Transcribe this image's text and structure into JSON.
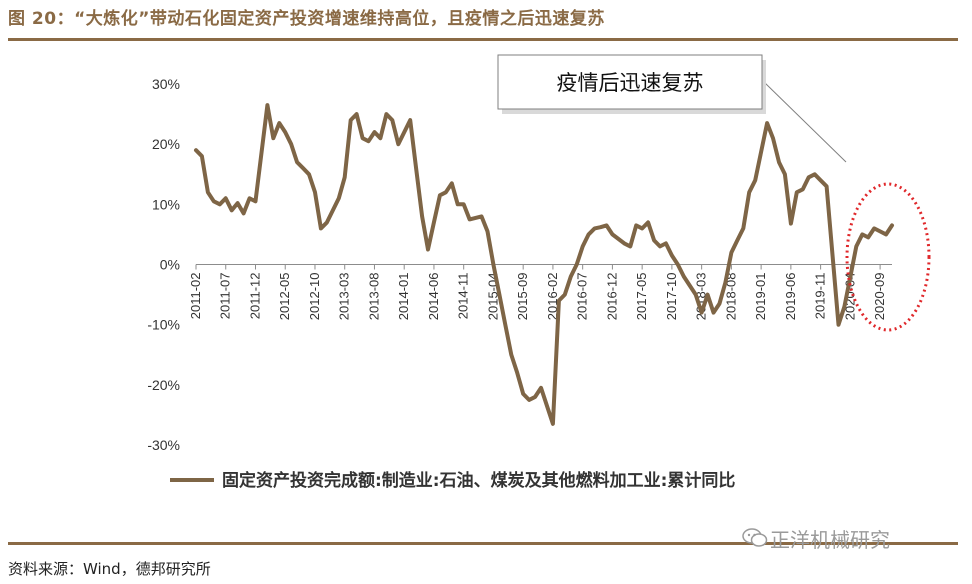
{
  "header": {
    "title": "图 20：“大炼化”带动石化固定资产投资增速维持高位，且疫情之后迅速复苏"
  },
  "footer": {
    "source": "资料来源：Wind，德邦研究所",
    "watermark": "正洋机械研究"
  },
  "colors": {
    "series": "#7e6546",
    "accent": "#8a6a45",
    "highlight_circle": "#e0282b"
  },
  "chart_data": {
    "type": "line",
    "title": "",
    "xlabel": "",
    "ylabel": "",
    "ylim": [
      -30,
      30
    ],
    "y_ticks": [
      "30%",
      "20%",
      "10%",
      "0%",
      "-10%",
      "-20%",
      "-30%"
    ],
    "x_tick_labels": [
      "2011-02",
      "2011-07",
      "2011-12",
      "2012-05",
      "2012-10",
      "2013-03",
      "2013-08",
      "2014-01",
      "2014-06",
      "2014-11",
      "2015-04",
      "2015-09",
      "2016-02",
      "2016-07",
      "2016-12",
      "2017-05",
      "2017-10",
      "2018-03",
      "2018-08",
      "2019-01",
      "2019-06",
      "2019-11",
      "2020-04",
      "2020-09"
    ],
    "grid": false,
    "legend_position": "bottom",
    "series": [
      {
        "name": "固定资产投资完成额:制造业:石油、煤炭及其他燃料加工业:累计同比",
        "x": [
          "2011-02",
          "2011-03",
          "2011-04",
          "2011-05",
          "2011-06",
          "2011-07",
          "2011-08",
          "2011-09",
          "2011-10",
          "2011-11",
          "2011-12",
          "2012-02",
          "2012-03",
          "2012-04",
          "2012-05",
          "2012-06",
          "2012-07",
          "2012-08",
          "2012-09",
          "2012-10",
          "2012-11",
          "2012-12",
          "2013-02",
          "2013-03",
          "2013-04",
          "2013-05",
          "2013-06",
          "2013-07",
          "2013-08",
          "2013-09",
          "2013-10",
          "2013-11",
          "2013-12",
          "2014-02",
          "2014-03",
          "2014-04",
          "2014-05",
          "2014-06",
          "2014-07",
          "2014-08",
          "2014-09",
          "2014-10",
          "2014-11",
          "2014-12",
          "2015-02",
          "2015-03",
          "2015-04",
          "2015-05",
          "2015-06",
          "2015-07",
          "2015-08",
          "2015-09",
          "2015-10",
          "2015-11",
          "2015-12",
          "2016-02",
          "2016-03",
          "2016-04",
          "2016-05",
          "2016-06",
          "2016-07",
          "2016-08",
          "2016-09",
          "2016-10",
          "2016-11",
          "2016-12",
          "2017-02",
          "2017-03",
          "2017-04",
          "2017-05",
          "2017-06",
          "2017-07",
          "2017-08",
          "2017-09",
          "2017-10",
          "2017-11",
          "2017-12",
          "2018-02",
          "2018-03",
          "2018-04",
          "2018-05",
          "2018-06",
          "2018-07",
          "2018-08",
          "2018-09",
          "2018-10",
          "2018-11",
          "2018-12",
          "2019-02",
          "2019-03",
          "2019-04",
          "2019-05",
          "2019-06",
          "2019-07",
          "2019-08",
          "2019-09",
          "2019-10",
          "2019-11",
          "2019-12",
          "2020-02",
          "2020-03",
          "2020-04",
          "2020-05",
          "2020-06",
          "2020-07",
          "2020-08",
          "2020-09",
          "2020-10",
          "2020-11"
        ],
        "values": [
          19,
          18,
          12,
          10.5,
          10,
          11,
          9,
          10.2,
          8.5,
          11,
          10.5,
          26.5,
          21,
          23.5,
          22,
          20,
          17,
          16,
          15,
          12,
          6,
          7,
          11,
          14.5,
          24,
          25,
          21,
          20.5,
          22,
          21,
          25,
          24,
          20,
          24,
          16,
          8,
          2.5,
          7,
          11.5,
          12,
          13.5,
          10,
          10,
          7.5,
          8,
          5.5,
          0,
          -5,
          -10,
          -15,
          -18,
          -21.5,
          -22.5,
          -22,
          -20.5,
          -26.5,
          -6,
          -5,
          -2,
          0,
          3,
          5,
          6,
          6.2,
          6.5,
          5,
          3.5,
          3,
          6.5,
          6,
          7,
          4,
          3,
          3.5,
          1.5,
          0,
          -2,
          -5,
          -8,
          -5,
          -8,
          -6.5,
          -3,
          2,
          4,
          6,
          12,
          14,
          23.5,
          21,
          17,
          15,
          6.8,
          12,
          12.5,
          14.5,
          15,
          14,
          13,
          -10,
          -7,
          -2,
          3,
          5,
          4.5,
          6,
          5.5,
          5,
          6.5
        ]
      }
    ],
    "annotations": [
      {
        "text": "疫情后迅速复苏",
        "type": "callout_box"
      },
      {
        "type": "dotted_circle",
        "target_range": [
          "2020-02",
          "2020-11"
        ]
      }
    ]
  }
}
